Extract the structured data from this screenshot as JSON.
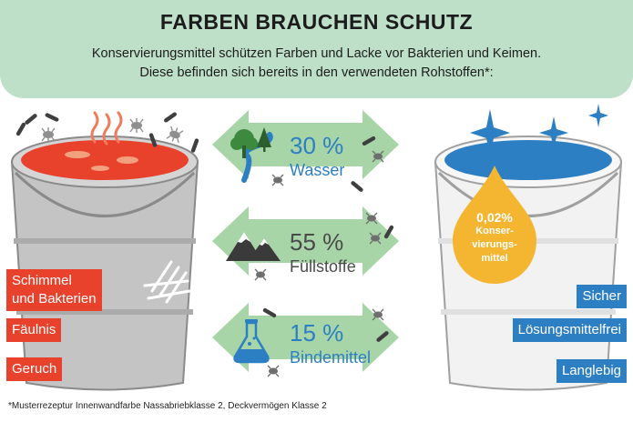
{
  "title": "FARBEN BRAUCHEN SCHUTZ",
  "subtitle_line1": "Konservierungsmittel schützen Farben und Lacke vor Bakterien und Keimen.",
  "subtitle_line2": "Diese befinden sich bereits in den verwendeten Rohstoffen*:",
  "left_bucket": {
    "labels": [
      "Schimmel",
      "und Bakterien",
      "Fäulnis",
      "Geruch"
    ]
  },
  "components": [
    {
      "percent": "30 %",
      "label": "Wasser",
      "icon": "tree-river-icon"
    },
    {
      "percent": "55 %",
      "label": "Füllstoffe",
      "icon": "mountains-icon"
    },
    {
      "percent": "15 %",
      "label": "Bindemittel",
      "icon": "flask-icon"
    }
  ],
  "right_bucket": {
    "drop_percent": "0,02%",
    "drop_word_lines": [
      "Konser-",
      "vierungs-",
      "mittel"
    ],
    "labels": [
      "Sicher",
      "Lösungsmittelfrei",
      "Langlebig"
    ]
  },
  "footnote": "*Musterrezeptur Innenwandfarbe Nassabriebklasse 2, Deckvermögen Klasse 2",
  "colors": {
    "header_bg": "#bfe0c8",
    "arrow_green": "#a8d5a8",
    "red_accent": "#e8412c",
    "blue_accent": "#2d7fc3",
    "drop_yellow": "#f4b531"
  }
}
